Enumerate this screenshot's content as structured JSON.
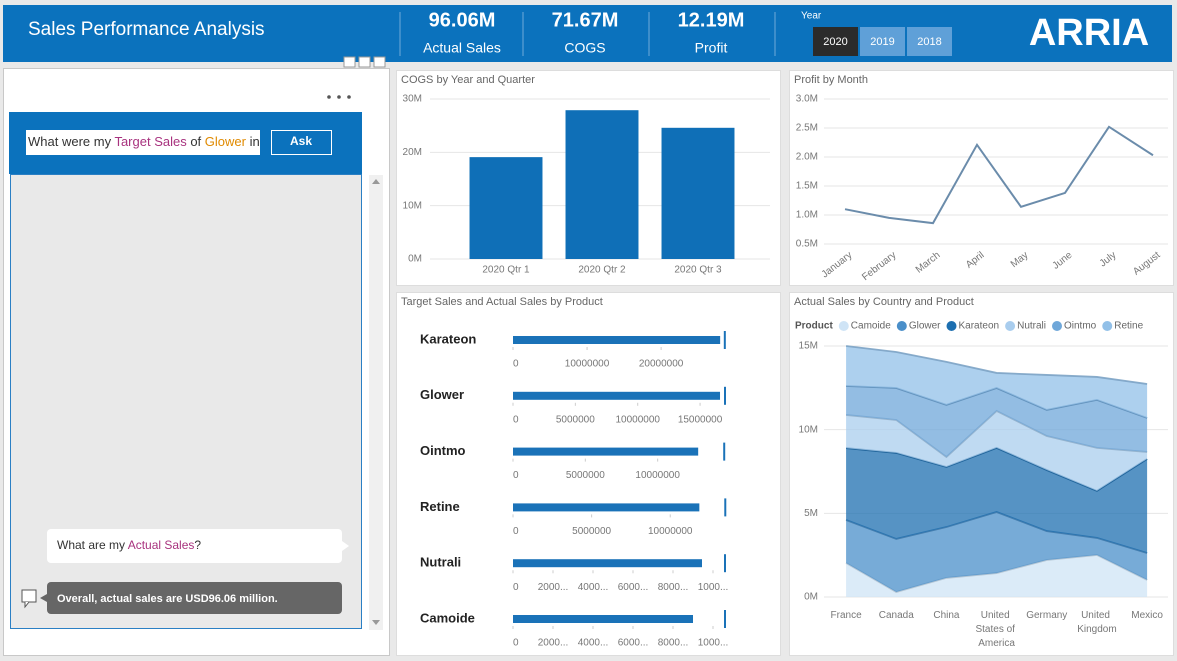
{
  "header": {
    "title": "Sales Performance Analysis",
    "kpis": [
      {
        "value": "96.06M",
        "label": "Actual Sales"
      },
      {
        "value": "71.67M",
        "label": "COGS"
      },
      {
        "value": "12.19M",
        "label": "Profit"
      }
    ],
    "year_label": "Year",
    "years": [
      "2020",
      "2019",
      "2018"
    ],
    "selected_year": 0,
    "logo": "ARRIA"
  },
  "qa": {
    "input": [
      {
        "text": "What were my ",
        "kind": "plain"
      },
      {
        "text": "Target Sales",
        "kind": "field"
      },
      {
        "text": " of ",
        "kind": "plain"
      },
      {
        "text": "Glower",
        "kind": "value"
      },
      {
        "text": " in",
        "kind": "plain"
      }
    ],
    "button": "Ask",
    "question": [
      {
        "text": "What are my ",
        "kind": "plain"
      },
      {
        "text": "Actual Sales",
        "kind": "field"
      },
      {
        "text": "?",
        "kind": "plain"
      }
    ],
    "answer": "Overall, actual sales are USD96.06 million."
  },
  "chart_data": [
    {
      "type": "bar",
      "title": "COGS by Year and Quarter",
      "categories": [
        "2020 Qtr 1",
        "2020 Qtr 2",
        "2020 Qtr 3"
      ],
      "values": [
        19.1,
        27.9,
        24.6
      ],
      "color": "#0f6fb7",
      "ylim": [
        0,
        30
      ],
      "yticks": [
        {
          "value": 0,
          "label": "0M"
        },
        {
          "value": 10,
          "label": "10M"
        },
        {
          "value": 20,
          "label": "20M"
        },
        {
          "value": 30,
          "label": "30M"
        }
      ],
      "grid": true
    },
    {
      "type": "line",
      "title": "Profit by Month",
      "categories": [
        "January",
        "February",
        "March",
        "April",
        "May",
        "June",
        "July",
        "August"
      ],
      "values": [
        1.1,
        0.95,
        0.86,
        2.21,
        1.14,
        1.38,
        2.52,
        2.03
      ],
      "color": "#6b8cab",
      "ylim": [
        0.5,
        3.0
      ],
      "yticks": [
        {
          "value": 0.5,
          "label": "0.5M"
        },
        {
          "value": 1.0,
          "label": "1.0M"
        },
        {
          "value": 1.5,
          "label": "1.5M"
        },
        {
          "value": 2.0,
          "label": "2.0M"
        },
        {
          "value": 2.5,
          "label": "2.5M"
        },
        {
          "value": 3.0,
          "label": "3.0M"
        }
      ],
      "grid": true
    },
    {
      "type": "bullet",
      "title": "Target Sales and Actual Sales by Product",
      "color": "#1a72b8",
      "rows": [
        {
          "category": "Karateon",
          "actual": 27970000,
          "target": 28600000,
          "xlim": [
            0,
            29300000
          ],
          "xticks": [
            0,
            10000000,
            20000000
          ]
        },
        {
          "category": "Glower",
          "actual": 16600000,
          "target": 17000000,
          "xlim": [
            0,
            17400000
          ],
          "xticks": [
            0,
            5000000,
            10000000,
            15000000
          ]
        },
        {
          "category": "Ointmo",
          "actual": 12800000,
          "target": 14600000,
          "xlim": [
            0,
            15000000
          ],
          "xticks": [
            0,
            5000000,
            10000000
          ]
        },
        {
          "category": "Retine",
          "actual": 11850000,
          "target": 13500000,
          "xlim": [
            0,
            13800000
          ],
          "xticks": [
            0,
            5000000,
            10000000
          ]
        },
        {
          "category": "Nutrali",
          "actual": 9450000,
          "target": 10600000,
          "xlim": [
            0,
            10850000
          ],
          "xticks": [
            0,
            {
              "value": 2000000,
              "label": "2000..."
            },
            {
              "value": 4000000,
              "label": "4000..."
            },
            {
              "value": 6000000,
              "label": "6000..."
            },
            {
              "value": 8000000,
              "label": "8000..."
            },
            {
              "value": 10000000,
              "label": "1000..."
            }
          ]
        },
        {
          "category": "Camoide",
          "actual": 9000000,
          "target": 10600000,
          "xlim": [
            0,
            10850000
          ],
          "xticks": [
            0,
            {
              "value": 2000000,
              "label": "2000..."
            },
            {
              "value": 4000000,
              "label": "4000..."
            },
            {
              "value": 6000000,
              "label": "6000..."
            },
            {
              "value": 8000000,
              "label": "8000..."
            },
            {
              "value": 10000000,
              "label": "1000..."
            }
          ]
        }
      ]
    },
    {
      "type": "stacked_area",
      "title": "Actual Sales by Country and Product",
      "legend_title": "Product",
      "categories": [
        "France",
        "Canada",
        "China",
        "United States of America",
        "Germany",
        "United Kingdom",
        "Mexico"
      ],
      "series": [
        {
          "name": "Camoide",
          "color": "#cfe4f6",
          "values": [
            2.03,
            0.3,
            1.14,
            1.43,
            2.21,
            2.51,
            1.02
          ]
        },
        {
          "name": "Glower",
          "color": "#4a8fc9",
          "values": [
            2.57,
            3.17,
            3.04,
            3.65,
            1.73,
            1.02,
            1.61
          ]
        },
        {
          "name": "Karateon",
          "color": "#1d6fb0",
          "values": [
            4.3,
            5.14,
            3.59,
            3.83,
            3.65,
            2.81,
            5.62
          ]
        },
        {
          "name": "Nutrali",
          "color": "#a9cdee",
          "values": [
            1.98,
            1.97,
            0.6,
            2.21,
            2.03,
            2.57,
            0.42
          ]
        },
        {
          "name": "Ointmo",
          "color": "#6fa7d9",
          "values": [
            1.73,
            1.91,
            3.11,
            1.37,
            1.56,
            2.87,
            2.03
          ]
        },
        {
          "name": "Retine",
          "color": "#92c0e8",
          "values": [
            2.39,
            2.15,
            2.57,
            0.9,
            2.09,
            1.37,
            2.03
          ]
        }
      ],
      "ylim": [
        0,
        15
      ],
      "yticks": [
        {
          "value": 0,
          "label": "0M"
        },
        {
          "value": 5,
          "label": "5M"
        },
        {
          "value": 10,
          "label": "10M"
        },
        {
          "value": 15,
          "label": "15M"
        }
      ],
      "grid": true
    }
  ]
}
